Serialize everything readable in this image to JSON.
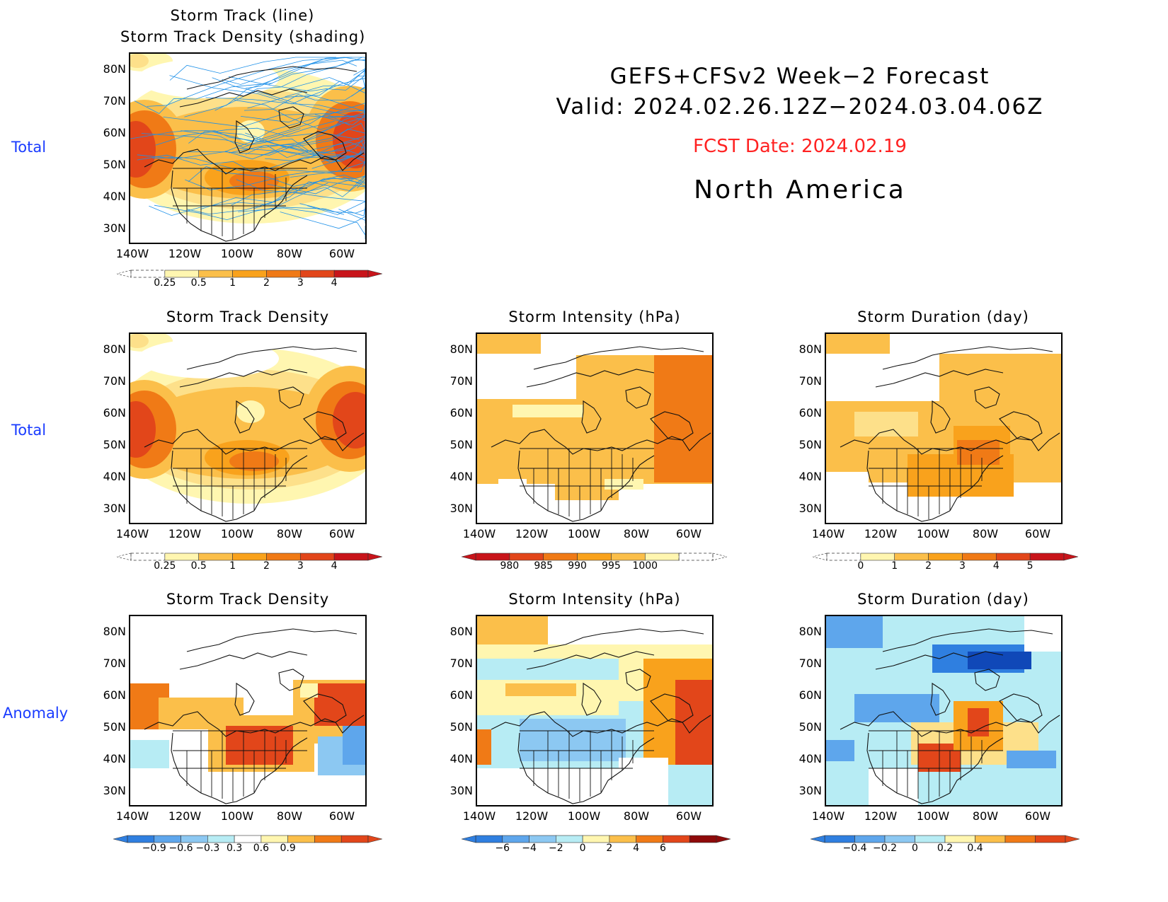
{
  "header": {
    "line1": "GEFS+CFSv2 Week−2 Forecast",
    "line2": "Valid: 2024.02.26.12Z−2024.03.04.06Z",
    "fcst": "FCST Date: 2024.02.19",
    "region": "North America"
  },
  "rows": {
    "top": "Total",
    "middle": "Total",
    "bottom": "Anomaly"
  },
  "axes": {
    "lat": [
      "80N",
      "70N",
      "60N",
      "50N",
      "40N",
      "30N"
    ],
    "lon": [
      "140W",
      "120W",
      "100W",
      "80W",
      "60W"
    ]
  },
  "panels": {
    "track": {
      "title1": "Storm Track (line)",
      "title2": "Storm Track Density (shading)"
    },
    "density_total": {
      "title": "Storm Track Density"
    },
    "intensity_total": {
      "title": "Storm Intensity (hPa)"
    },
    "duration_total": {
      "title": "Storm Duration (day)"
    },
    "density_anom": {
      "title": "Storm Track Density"
    },
    "intensity_anom": {
      "title": "Storm Intensity (hPa)"
    },
    "duration_anom": {
      "title": "Storm Duration (day)"
    }
  },
  "colorbars": {
    "density": [
      "0.25",
      "0.5",
      "1",
      "2",
      "3",
      "4"
    ],
    "intensity": [
      "980",
      "985",
      "990",
      "995",
      "1000"
    ],
    "duration": [
      "0",
      "1",
      "2",
      "3",
      "4",
      "5"
    ],
    "density_anom": [
      "−0.9",
      "−0.6",
      "−0.3",
      "0.3",
      "0.6",
      "0.9"
    ],
    "intensity_anom": [
      "−6",
      "−4",
      "−2",
      "0",
      "2",
      "4",
      "6"
    ],
    "duration_anom": [
      "−0.4",
      "−0.2",
      "0",
      "0.2",
      "0.4"
    ]
  },
  "colors": {
    "warm": [
      "#fff6b0",
      "#fde08a",
      "#fbbf4a",
      "#f9a21c",
      "#f07a16",
      "#e2461a",
      "#c8141a",
      "#8e0a0a"
    ],
    "cool": [
      "#b7ecf4",
      "#8cc8f2",
      "#5ea6ec",
      "#2f7fe0",
      "#1048b8"
    ],
    "track_line": "#1e90e8",
    "row_label": "#1a3cff",
    "fcst": "#ff2222"
  }
}
